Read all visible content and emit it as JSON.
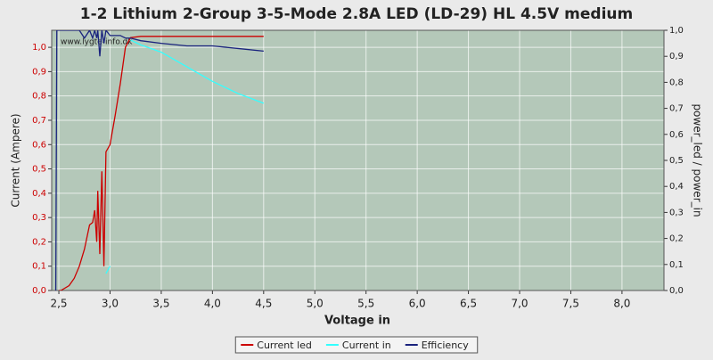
{
  "chart_data": {
    "type": "line",
    "title": "1-2 Lithium 2-Group 3-5-Mode 2.8A LED (LD-29) HL 4.5V medium",
    "x_label": "Voltage in",
    "y_label": "Current (Ampere)",
    "y2_label": "power_led / power_in",
    "watermark": "www.lygte-info.dk",
    "x": [
      2.47,
      2.48,
      2.5,
      2.52,
      2.6,
      2.65,
      2.7,
      2.75,
      2.8,
      2.83,
      2.85,
      2.87,
      2.88,
      2.9,
      2.92,
      2.94,
      2.96,
      3.0,
      3.05,
      3.1,
      3.15,
      3.2,
      3.3,
      3.5,
      3.75,
      4.0,
      4.25,
      4.5
    ],
    "series": [
      {
        "name": "Current led",
        "color": "#cc0000",
        "axis": "y",
        "values": [
          null,
          null,
          0,
          0,
          0.02,
          0.05,
          0.1,
          0.17,
          0.27,
          0.28,
          0.33,
          0.2,
          0.41,
          0.15,
          0.49,
          0.1,
          0.57,
          0.6,
          0.72,
          0.85,
          1.0,
          1.04,
          1.045,
          1.045,
          1.045,
          1.045,
          1.045,
          1.045
        ]
      },
      {
        "name": "Current in",
        "color": "#33ffff",
        "axis": "y",
        "values": [
          null,
          null,
          null,
          null,
          null,
          null,
          null,
          null,
          null,
          null,
          null,
          null,
          null,
          null,
          null,
          null,
          0.07,
          0.1,
          null,
          null,
          null,
          1.03,
          1.01,
          0.98,
          0.92,
          0.86,
          0.81,
          0.77
        ]
      },
      {
        "name": "Efficiency",
        "color": "#1a237e",
        "axis": "y2",
        "values": [
          0,
          1.0,
          1.0,
          1.0,
          1.0,
          1.0,
          1.0,
          0.97,
          1.0,
          0.97,
          1.0,
          0.97,
          1.0,
          0.9,
          1.0,
          0.95,
          1.0,
          0.98,
          0.98,
          0.98,
          0.97,
          0.97,
          0.96,
          0.95,
          0.94,
          0.94,
          0.93,
          0.92
        ]
      }
    ],
    "xlim": [
      2.43,
      8.41
    ],
    "ylim": [
      0,
      1.07
    ],
    "y2lim": [
      0,
      1
    ],
    "xticks": [
      {
        "value": 2.5,
        "label": "2,5"
      },
      {
        "value": 3.0,
        "label": "3,0"
      },
      {
        "value": 3.5,
        "label": "3,5"
      },
      {
        "value": 4.0,
        "label": "4,0"
      },
      {
        "value": 4.5,
        "label": "4,5"
      },
      {
        "value": 5.0,
        "label": "5,0"
      },
      {
        "value": 5.5,
        "label": "5,5"
      },
      {
        "value": 6.0,
        "label": "6,0"
      },
      {
        "value": 6.5,
        "label": "6,5"
      },
      {
        "value": 7.0,
        "label": "7,0"
      },
      {
        "value": 7.5,
        "label": "7,5"
      },
      {
        "value": 8.0,
        "label": "8,0"
      }
    ],
    "yticks": [
      {
        "value": 0,
        "label": "0,0"
      },
      {
        "value": 0.1,
        "label": "0,1"
      },
      {
        "value": 0.2,
        "label": "0,2"
      },
      {
        "value": 0.3,
        "label": "0,3"
      },
      {
        "value": 0.4,
        "label": "0,4"
      },
      {
        "value": 0.5,
        "label": "0,5"
      },
      {
        "value": 0.6,
        "label": "0,6"
      },
      {
        "value": 0.7,
        "label": "0,7"
      },
      {
        "value": 0.8,
        "label": "0,8"
      },
      {
        "value": 0.9,
        "label": "0,9"
      },
      {
        "value": 1.0,
        "label": "1,0"
      }
    ],
    "y2ticks": [
      {
        "value": 0,
        "label": "0,0"
      },
      {
        "value": 0.1,
        "label": "0,1"
      },
      {
        "value": 0.2,
        "label": "0,2"
      },
      {
        "value": 0.3,
        "label": "0,3"
      },
      {
        "value": 0.4,
        "label": "0,4"
      },
      {
        "value": 0.5,
        "label": "0,5"
      },
      {
        "value": 0.6,
        "label": "0,6"
      },
      {
        "value": 0.7,
        "label": "0,7"
      },
      {
        "value": 0.8,
        "label": "0,8"
      },
      {
        "value": 0.9,
        "label": "0,9"
      },
      {
        "value": 1.0,
        "label": "1,0"
      }
    ],
    "grid": true,
    "plot_background": "#b4c8b9",
    "y_label_color": "#cc0000"
  }
}
